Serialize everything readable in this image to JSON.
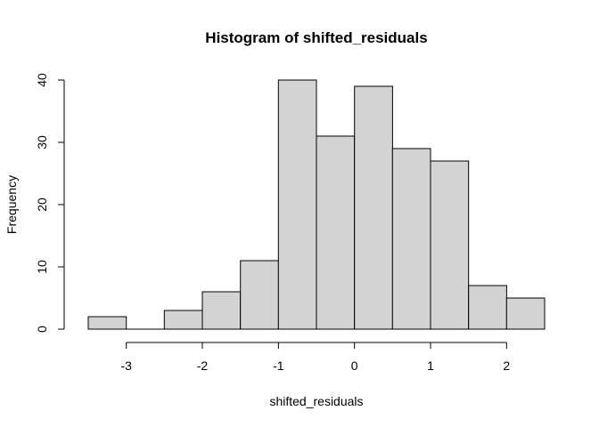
{
  "chart_data": {
    "type": "bar",
    "title": "Histogram of shifted_residuals",
    "xlabel": "shifted_residuals",
    "ylabel": "Frequency",
    "bin_edges": [
      -3.5,
      -3,
      -2.5,
      -2,
      -1.5,
      -1,
      -0.5,
      0,
      0.5,
      1,
      1.5,
      2,
      2.5
    ],
    "values": [
      2,
      0,
      3,
      6,
      11,
      40,
      31,
      39,
      29,
      27,
      7,
      5
    ],
    "xlim": [
      -3.5,
      2.5
    ],
    "ylim": [
      0,
      40
    ],
    "x_ticks": [
      -3,
      -2,
      -1,
      0,
      1,
      2
    ],
    "x_tick_labels": [
      "-3",
      "-2",
      "-1",
      "0",
      "1",
      "2"
    ],
    "y_ticks": [
      0,
      10,
      20,
      30,
      40
    ],
    "y_tick_labels": [
      "0",
      "10",
      "20",
      "30",
      "40"
    ],
    "grid": false
  }
}
